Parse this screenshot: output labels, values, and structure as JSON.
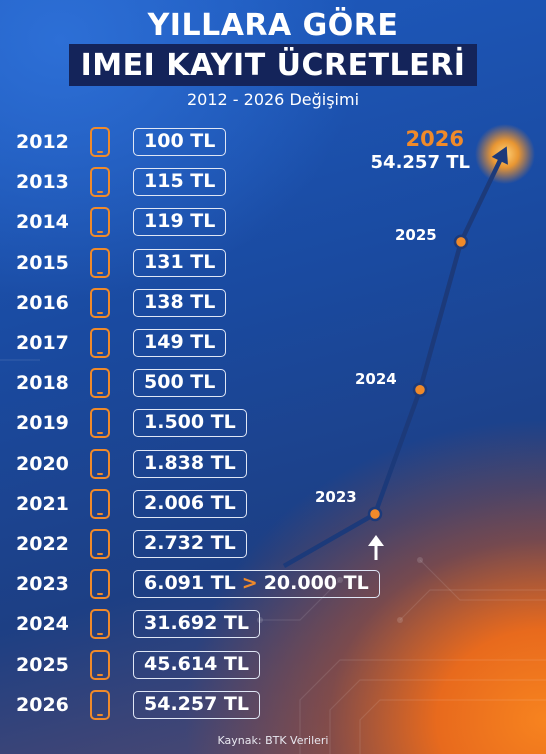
{
  "title": {
    "line1": "YILLARA GÖRE",
    "line2": "IMEI KAYIT ÜCRETLERİ",
    "subtitle": "2012 - 2026 Değişimi"
  },
  "rows": [
    {
      "year": "2012",
      "fee": "100 TL"
    },
    {
      "year": "2013",
      "fee": "115 TL"
    },
    {
      "year": "2014",
      "fee": "119 TL"
    },
    {
      "year": "2015",
      "fee": "131 TL"
    },
    {
      "year": "2016",
      "fee": "138 TL"
    },
    {
      "year": "2017",
      "fee": "149 TL"
    },
    {
      "year": "2018",
      "fee": "500 TL"
    },
    {
      "year": "2019",
      "fee": "1.500 TL"
    },
    {
      "year": "2020",
      "fee": "1.838 TL"
    },
    {
      "year": "2021",
      "fee": "2.006 TL"
    },
    {
      "year": "2022",
      "fee": "2.732 TL"
    },
    {
      "year": "2023",
      "fee": "6.091 TL",
      "arrow": ">",
      "fee_after": "20.000 TL"
    },
    {
      "year": "2024",
      "fee": "31.692 TL"
    },
    {
      "year": "2025",
      "fee": "45.614 TL"
    },
    {
      "year": "2026",
      "fee": "54.257 TL"
    }
  ],
  "chart_data": {
    "type": "line",
    "x": [
      "2023",
      "2024",
      "2025",
      "2026"
    ],
    "series": [
      {
        "values": [
          20000,
          31692,
          45614,
          54257
        ]
      }
    ],
    "point_labels": [
      "2023",
      "2024",
      "2025",
      "2026"
    ],
    "highlight_label": "2026",
    "highlight_value": "54.257 TL"
  },
  "colors": {
    "accent": "#f08a2a",
    "line": "#1c3a7a",
    "title_band": "#14245a"
  },
  "source": "Kaynak: BTK Verileri"
}
